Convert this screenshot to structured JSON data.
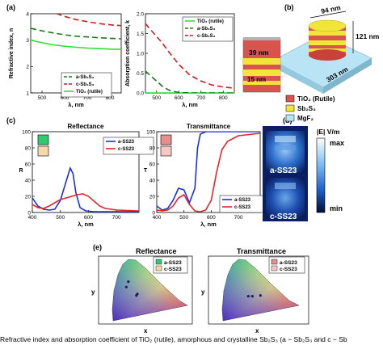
{
  "panels": {
    "a": {
      "label": "(a)"
    },
    "b": {
      "label": "(b)"
    },
    "c": {
      "label": "(c)"
    },
    "d": {
      "label": "(d)"
    },
    "e": {
      "label": "(e)"
    }
  },
  "colors": {
    "a_sb2s3": "#1a7a1a",
    "c_sb2s3": "#c81e1e",
    "tio2": "#33dd33",
    "a_ss23": "#1f2fd8",
    "c_ss23": "#e0262a",
    "red_layer": "#d9534f",
    "yellow_layer": "#f2e53a",
    "mgf2": "#b8e4f5"
  },
  "structure_b": {
    "dim_top": "94 nm",
    "dim_height": "121 nm",
    "dim_base": "303 nm",
    "inset_top": "39 nm",
    "inset_bottom": "15 nm",
    "legend": [
      "TiO₂ (Rutile)",
      "Sb₂S₃",
      "MgF₂"
    ]
  },
  "field_d": {
    "title": "|E| V/m",
    "max_label": "max",
    "min_label": "min",
    "top_label": "a-SS23",
    "bottom_label": "c-SS23"
  },
  "cie_e": {
    "left_title": "Reflectance",
    "right_title": "Transmittance",
    "left_legend": [
      "a-SS23",
      "c-SS23"
    ],
    "right_legend": [
      "a-SS23",
      "c-SS23"
    ],
    "xlabel": "x",
    "ylabel": "y",
    "left_points": [
      [
        0.23,
        0.52
      ],
      [
        0.21,
        0.45
      ],
      [
        0.32,
        0.36
      ],
      [
        0.31,
        0.34
      ]
    ],
    "right_points": [
      [
        0.33,
        0.33
      ],
      [
        0.37,
        0.33
      ],
      [
        0.45,
        0.34
      ]
    ]
  },
  "caption": "Refractive index and absorption coefficient of TiO₂ (rutile), amorphous and crystalline Sb₂S₃ (a − Sb₂S₃ and c − Sb",
  "chart_data": [
    {
      "type": "line",
      "id": "refractive-index",
      "ylabel": "Refractive index, n",
      "xlabel": "λ, nm",
      "xlim": [
        450,
        850
      ],
      "ylim": [
        1,
        4
      ],
      "xticks": [
        500,
        600,
        700,
        800
      ],
      "yticks": [
        1,
        2,
        3,
        4
      ],
      "legend": "bottom-right",
      "series": [
        {
          "name": "a-Sb₂S₃",
          "color": "#1a7a1a",
          "dash": "7,4",
          "x": [
            450,
            500,
            550,
            600,
            650,
            700,
            750,
            800,
            850
          ],
          "y": [
            3.45,
            3.35,
            3.27,
            3.2,
            3.15,
            3.12,
            3.09,
            3.07,
            3.05
          ]
        },
        {
          "name": "c-Sb₂S₃",
          "color": "#c81e1e",
          "dash": "7,4",
          "x": [
            450,
            500,
            550,
            600,
            650,
            700,
            750,
            800,
            850
          ],
          "y": [
            4.3,
            4.2,
            4.05,
            3.9,
            3.78,
            3.7,
            3.63,
            3.58,
            3.55
          ]
        },
        {
          "name": "TiO₂ (rutile)",
          "color": "#33dd33",
          "dash": "",
          "x": [
            450,
            500,
            550,
            600,
            650,
            700,
            750,
            800,
            850
          ],
          "y": [
            3.0,
            2.9,
            2.82,
            2.77,
            2.73,
            2.7,
            2.68,
            2.66,
            2.65
          ]
        }
      ]
    },
    {
      "type": "line",
      "id": "absorption-coefficient",
      "ylabel": "Absorption coefficient, k",
      "xlabel": "λ, nm",
      "xlim": [
        450,
        850
      ],
      "ylim": [
        0,
        2
      ],
      "xticks": [
        500,
        600,
        700,
        800
      ],
      "yticks": [
        0.0,
        0.5,
        1.0,
        1.5,
        2.0
      ],
      "legend": "top-right",
      "series": [
        {
          "name": "TiO₂ (rutile)",
          "color": "#33dd33",
          "dash": "",
          "x": [
            450,
            500,
            600,
            700,
            800,
            850
          ],
          "y": [
            0,
            0,
            0,
            0,
            0,
            0
          ]
        },
        {
          "name": "a-Sb₂S₃",
          "color": "#1a7a1a",
          "dash": "7,4",
          "x": [
            450,
            470,
            500,
            530,
            560,
            600,
            650,
            700,
            850
          ],
          "y": [
            0.55,
            0.45,
            0.3,
            0.15,
            0.06,
            0.01,
            0,
            0,
            0
          ]
        },
        {
          "name": "c-Sb₂S₃",
          "color": "#c81e1e",
          "dash": "7,4",
          "x": [
            450,
            480,
            520,
            560,
            600,
            650,
            700,
            750,
            800,
            850
          ],
          "y": [
            1.75,
            1.55,
            1.3,
            1.0,
            0.72,
            0.45,
            0.3,
            0.2,
            0.15,
            0.12
          ]
        }
      ]
    },
    {
      "type": "line",
      "id": "reflectance",
      "title": "Reflectance",
      "ylabel": "R",
      "xlabel": "λ, nm",
      "xlim": [
        400,
        780
      ],
      "ylim": [
        0,
        100
      ],
      "xticks": [
        400,
        500,
        600,
        700
      ],
      "yticks": [
        0,
        20,
        40,
        60,
        80,
        100
      ],
      "legend": "top-right",
      "series": [
        {
          "name": "a-SS23",
          "color": "#1f2fd8",
          "x": [
            400,
            420,
            440,
            460,
            480,
            500,
            520,
            535,
            545,
            555,
            570,
            590,
            620,
            660,
            700,
            780
          ],
          "y": [
            18,
            8,
            4,
            3,
            4,
            15,
            38,
            55,
            48,
            25,
            6,
            2,
            1,
            1,
            1,
            1
          ]
        },
        {
          "name": "c-SS23",
          "color": "#e0262a",
          "x": [
            400,
            420,
            440,
            460,
            480,
            500,
            520,
            540,
            560,
            580,
            600,
            620,
            640,
            660,
            700,
            780
          ],
          "y": [
            10,
            6,
            5,
            8,
            12,
            16,
            18,
            20,
            22,
            23,
            20,
            14,
            8,
            5,
            3,
            2
          ]
        }
      ]
    },
    {
      "type": "line",
      "id": "transmittance",
      "title": "Transmittance",
      "ylabel": "T",
      "xlabel": "λ, nm",
      "xlim": [
        400,
        780
      ],
      "ylim": [
        0,
        100
      ],
      "xticks": [
        400,
        500,
        600,
        700
      ],
      "yticks": [
        0,
        20,
        40,
        60,
        80,
        100
      ],
      "legend": "bottom-right",
      "series": [
        {
          "name": "a-SS23",
          "color": "#1f2fd8",
          "x": [
            400,
            420,
            440,
            460,
            480,
            500,
            520,
            540,
            550,
            560,
            580,
            600,
            650,
            700,
            780
          ],
          "y": [
            8,
            3,
            5,
            15,
            30,
            28,
            12,
            30,
            80,
            97,
            100,
            100,
            100,
            100,
            100
          ]
        },
        {
          "name": "c-SS23",
          "color": "#e0262a",
          "x": [
            400,
            420,
            440,
            460,
            480,
            500,
            520,
            540,
            560,
            580,
            600,
            620,
            640,
            660,
            700,
            780
          ],
          "y": [
            3,
            2,
            3,
            8,
            18,
            22,
            10,
            2,
            1,
            3,
            15,
            50,
            78,
            88,
            95,
            98
          ]
        }
      ]
    }
  ]
}
